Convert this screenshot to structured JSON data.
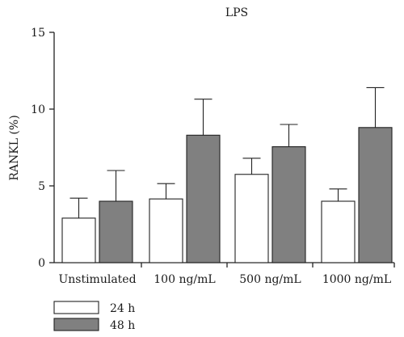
{
  "chart_data": {
    "type": "bar",
    "title": "LPS",
    "xlabel": "",
    "ylabel": "RANKL (%)",
    "ylim": [
      0,
      15
    ],
    "yticks": [
      0,
      5,
      10,
      15
    ],
    "categories": [
      "Unstimulated",
      "100 ng/mL",
      "500 ng/mL",
      "1000 ng/mL"
    ],
    "series": [
      {
        "name": "24 h",
        "color": "#ffffff",
        "values": [
          2.9,
          4.15,
          5.75,
          4.0
        ],
        "errors": [
          1.3,
          1.0,
          1.05,
          0.8
        ]
      },
      {
        "name": "48 h",
        "color": "#808080",
        "values": [
          4.0,
          8.3,
          7.55,
          8.8
        ],
        "errors": [
          2.0,
          2.35,
          1.45,
          2.6
        ]
      }
    ],
    "legend_position": "bottom-left",
    "grid": false
  }
}
